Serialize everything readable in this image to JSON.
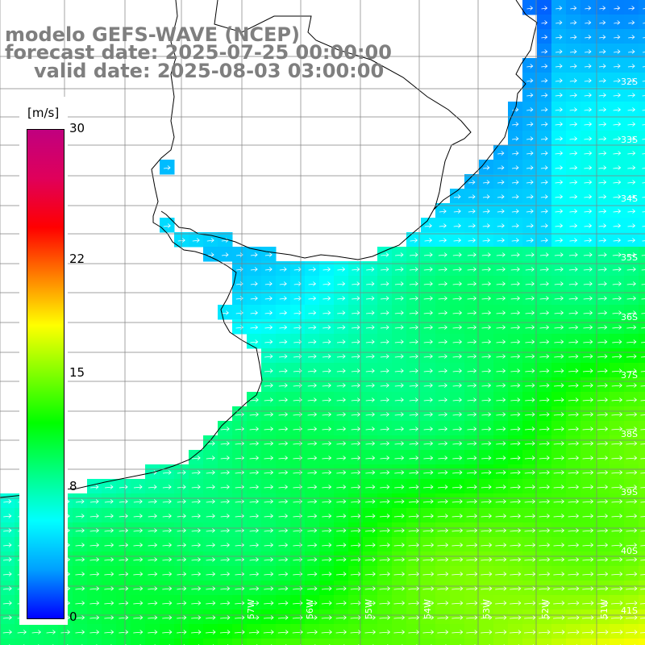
{
  "title": {
    "line1": "modelo GEFS-WAVE (NCEP)",
    "line2": "forecast date: 2025-07-25 00:00:00",
    "line3": "valid date: 2025-08-03 03:00:00"
  },
  "colorbar": {
    "unit": "[m/s]",
    "ticks": [
      "30",
      "22",
      "15",
      "8",
      "0"
    ],
    "tick_values": [
      30,
      22,
      15,
      8,
      0
    ],
    "min": 0,
    "max": 30,
    "colors": [
      "#0000ff",
      "#00a0ff",
      "#00ffff",
      "#00ff80",
      "#00ff00",
      "#80ff00",
      "#ffff00",
      "#ff8000",
      "#ff0000",
      "#e0005a",
      "#c0007f"
    ]
  },
  "lat_labels": [
    "32S",
    "33S",
    "34S",
    "35S",
    "36S",
    "37S",
    "38S",
    "39S",
    "40S",
    "41S"
  ],
  "lon_labels": [
    "57W",
    "56W",
    "55W",
    "54W",
    "53W",
    "52W",
    "51W"
  ],
  "map": {
    "land_color": "#ffffff",
    "grid_color": "#808080",
    "coast_color": "#000000",
    "arrow_color": "#ffffff"
  }
}
